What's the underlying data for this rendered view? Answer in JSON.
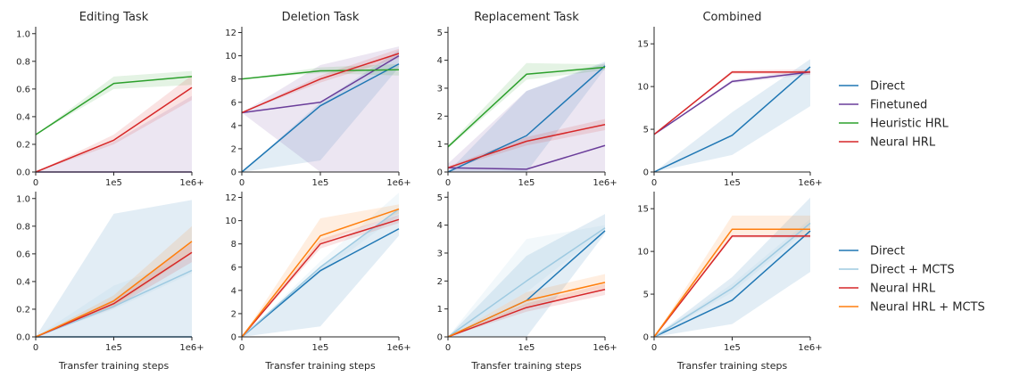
{
  "colors": {
    "Direct": "#1f77b4",
    "Finetuned": "#6a3d9a",
    "Heuristic HRL": "#2ca02c",
    "Neural HRL": "#d62728",
    "Direct + MCTS": "#9ecae1",
    "Neural HRL + MCTS": "#ff7f0e"
  },
  "legends": {
    "top": [
      "Direct",
      "Finetuned",
      "Heuristic HRL",
      "Neural HRL"
    ],
    "bottom": [
      "Direct",
      "Direct + MCTS",
      "Neural HRL",
      "Neural HRL + MCTS"
    ]
  },
  "chart_data": [
    {
      "type": "line",
      "title": "Editing Task",
      "xlabel": "",
      "x": [
        "0",
        "1e5",
        "1e6+"
      ],
      "ylim": [
        0,
        1.05
      ],
      "yticks": [
        "0.0",
        "0.2",
        "0.4",
        "0.6",
        "0.8",
        "1.0"
      ],
      "series": [
        {
          "name": "Finetuned",
          "values": [
            0,
            0,
            0
          ],
          "lower": [
            0,
            0,
            0
          ],
          "upper": [
            0,
            0.22,
            0.55
          ]
        },
        {
          "name": "Heuristic HRL",
          "values": [
            0.27,
            0.64,
            0.69
          ],
          "lower": [
            0.27,
            0.6,
            0.63
          ],
          "upper": [
            0.27,
            0.69,
            0.73
          ]
        },
        {
          "name": "Neural HRL",
          "values": [
            0,
            0.23,
            0.61
          ],
          "lower": [
            0,
            0.2,
            0.52
          ],
          "upper": [
            0,
            0.27,
            0.7
          ]
        }
      ]
    },
    {
      "type": "line",
      "title": "Deletion Task",
      "xlabel": "",
      "x": [
        "0",
        "1e5",
        "1e6+"
      ],
      "ylim": [
        0,
        12.5
      ],
      "yticks": [
        "0",
        "2",
        "4",
        "6",
        "8",
        "10",
        "12"
      ],
      "series": [
        {
          "name": "Direct",
          "values": [
            0,
            5.7,
            9.3
          ],
          "lower": [
            0,
            1,
            9
          ],
          "upper": [
            0,
            6,
            10.5
          ]
        },
        {
          "name": "Finetuned",
          "values": [
            5.1,
            6,
            10
          ],
          "lower": [
            5.1,
            0,
            0
          ],
          "upper": [
            5.1,
            9.2,
            10.8
          ]
        },
        {
          "name": "Heuristic HRL",
          "values": [
            8,
            8.7,
            8.8
          ],
          "lower": [
            8,
            8.5,
            8.3
          ],
          "upper": [
            8,
            9,
            9.3
          ]
        },
        {
          "name": "Neural HRL",
          "values": [
            5.1,
            8,
            10.2
          ],
          "lower": [
            5.1,
            7.7,
            9.8
          ],
          "upper": [
            5.1,
            8.3,
            10.6
          ]
        }
      ]
    },
    {
      "type": "line",
      "title": "Replacement Task",
      "xlabel": "",
      "x": [
        "0",
        "1e5",
        "1e6+"
      ],
      "ylim": [
        0,
        5.2
      ],
      "yticks": [
        "0",
        "1",
        "2",
        "3",
        "4",
        "5"
      ],
      "series": [
        {
          "name": "Direct",
          "values": [
            0,
            1.3,
            3.8
          ],
          "lower": [
            0,
            0,
            3.7
          ],
          "upper": [
            0,
            2.9,
            3.95
          ]
        },
        {
          "name": "Finetuned",
          "values": [
            0.15,
            0.1,
            0.95
          ],
          "lower": [
            0,
            0,
            0
          ],
          "upper": [
            0.3,
            2.9,
            3.9
          ]
        },
        {
          "name": "Heuristic HRL",
          "values": [
            0.9,
            3.5,
            3.75
          ],
          "lower": [
            0.85,
            3.3,
            3.65
          ],
          "upper": [
            0.95,
            3.9,
            3.85
          ]
        },
        {
          "name": "Neural HRL",
          "values": [
            0.15,
            1.1,
            1.7
          ],
          "lower": [
            0.1,
            0.95,
            1.5
          ],
          "upper": [
            0.2,
            1.25,
            1.9
          ]
        }
      ]
    },
    {
      "type": "line",
      "title": "Combined",
      "xlabel": "",
      "x": [
        "0",
        "1e5",
        "1e6+"
      ],
      "ylim": [
        0,
        17
      ],
      "yticks": [
        "0",
        "5",
        "10",
        "15"
      ],
      "series": [
        {
          "name": "Direct",
          "values": [
            0,
            4.3,
            12.3
          ],
          "lower": [
            0,
            2,
            7.7
          ],
          "upper": [
            0,
            7,
            13.2
          ]
        },
        {
          "name": "Finetuned",
          "values": [
            4.4,
            10.6,
            11.7
          ],
          "lower": [
            4.4,
            10.4,
            11.4
          ],
          "upper": [
            4.4,
            10.8,
            12
          ]
        },
        {
          "name": "Neural HRL",
          "values": [
            4.4,
            11.7,
            11.7
          ],
          "lower": [
            4.4,
            11.5,
            11.4
          ],
          "upper": [
            4.4,
            11.9,
            12
          ]
        }
      ]
    },
    {
      "type": "line",
      "title": "",
      "xlabel": "Transfer training steps",
      "x": [
        "0",
        "1e5",
        "1e6+"
      ],
      "ylim": [
        0,
        1.05
      ],
      "yticks": [
        "0.0",
        "0.2",
        "0.4",
        "0.6",
        "0.8",
        "1.0"
      ],
      "series": [
        {
          "name": "Direct",
          "values": [
            0,
            0,
            0
          ],
          "lower": [
            0,
            0,
            0
          ],
          "upper": [
            0,
            0.89,
            0.99
          ]
        },
        {
          "name": "Direct + MCTS",
          "values": [
            0,
            0.22,
            0.48
          ],
          "lower": [
            0,
            0.2,
            0.46
          ],
          "upper": [
            0,
            0.37,
            0.58
          ]
        },
        {
          "name": "Neural HRL",
          "values": [
            0,
            0.24,
            0.61
          ],
          "lower": [
            0,
            0.21,
            0.54
          ],
          "upper": [
            0,
            0.27,
            0.68
          ]
        },
        {
          "name": "Neural HRL + MCTS",
          "values": [
            0,
            0.26,
            0.69
          ],
          "lower": [
            0,
            0.22,
            0.6
          ],
          "upper": [
            0,
            0.3,
            0.8
          ]
        }
      ]
    },
    {
      "type": "line",
      "title": "",
      "xlabel": "Transfer training steps",
      "x": [
        "0",
        "1e5",
        "1e6+"
      ],
      "ylim": [
        0,
        12.5
      ],
      "yticks": [
        "0",
        "2",
        "4",
        "6",
        "8",
        "10",
        "12"
      ],
      "series": [
        {
          "name": "Direct",
          "values": [
            0,
            5.7,
            9.3
          ],
          "lower": [
            0,
            0.9,
            8.7
          ],
          "upper": [
            0,
            6,
            11
          ]
        },
        {
          "name": "Direct + MCTS",
          "values": [
            0,
            6,
            11
          ],
          "lower": [
            0,
            5.5,
            10.5
          ],
          "upper": [
            0,
            6.5,
            12.4
          ]
        },
        {
          "name": "Neural HRL",
          "values": [
            0,
            8,
            10.1
          ],
          "lower": [
            0,
            7.6,
            9.8
          ],
          "upper": [
            0,
            8.4,
            10.5
          ]
        },
        {
          "name": "Neural HRL + MCTS",
          "values": [
            0,
            8.7,
            11
          ],
          "lower": [
            0,
            8.1,
            10.6
          ],
          "upper": [
            0,
            10.2,
            11.4
          ]
        }
      ]
    },
    {
      "type": "line",
      "title": "",
      "xlabel": "Transfer training steps",
      "x": [
        "0",
        "1e5",
        "1e6+"
      ],
      "ylim": [
        0,
        5.2
      ],
      "yticks": [
        "0",
        "1",
        "2",
        "3",
        "4",
        "5"
      ],
      "series": [
        {
          "name": "Direct",
          "values": [
            0,
            1.3,
            3.8
          ],
          "lower": [
            0,
            0,
            3.7
          ],
          "upper": [
            0,
            2.9,
            4.4
          ]
        },
        {
          "name": "Direct + MCTS",
          "values": [
            0,
            2,
            3.9
          ],
          "lower": [
            0,
            1.6,
            3.8
          ],
          "upper": [
            0,
            3.5,
            4
          ]
        },
        {
          "name": "Neural HRL",
          "values": [
            0,
            1.05,
            1.7
          ],
          "lower": [
            0,
            0.9,
            1.5
          ],
          "upper": [
            0,
            1.2,
            1.9
          ]
        },
        {
          "name": "Neural HRL + MCTS",
          "values": [
            0,
            1.3,
            1.95
          ],
          "lower": [
            0,
            1.1,
            1.75
          ],
          "upper": [
            0,
            1.6,
            2.25
          ]
        }
      ]
    },
    {
      "type": "line",
      "title": "",
      "xlabel": "Transfer training steps",
      "x": [
        "0",
        "1e5",
        "1e6+"
      ],
      "ylim": [
        0,
        17
      ],
      "yticks": [
        "0",
        "5",
        "10",
        "15"
      ],
      "series": [
        {
          "name": "Direct",
          "values": [
            0,
            4.3,
            12.4
          ],
          "lower": [
            0,
            1.5,
            7.6
          ],
          "upper": [
            0,
            7,
            16.3
          ]
        },
        {
          "name": "Direct + MCTS",
          "values": [
            0,
            5.7,
            13.3
          ],
          "lower": [
            0,
            5.2,
            12.8
          ],
          "upper": [
            0,
            6.2,
            13.8
          ]
        },
        {
          "name": "Neural HRL",
          "values": [
            0,
            11.8,
            11.8
          ],
          "lower": [
            0,
            11.6,
            11.6
          ],
          "upper": [
            0,
            12,
            12
          ]
        },
        {
          "name": "Neural HRL + MCTS",
          "values": [
            0,
            12.6,
            12.6
          ],
          "lower": [
            0,
            12,
            12
          ],
          "upper": [
            0,
            14.2,
            14.2
          ]
        }
      ]
    }
  ]
}
